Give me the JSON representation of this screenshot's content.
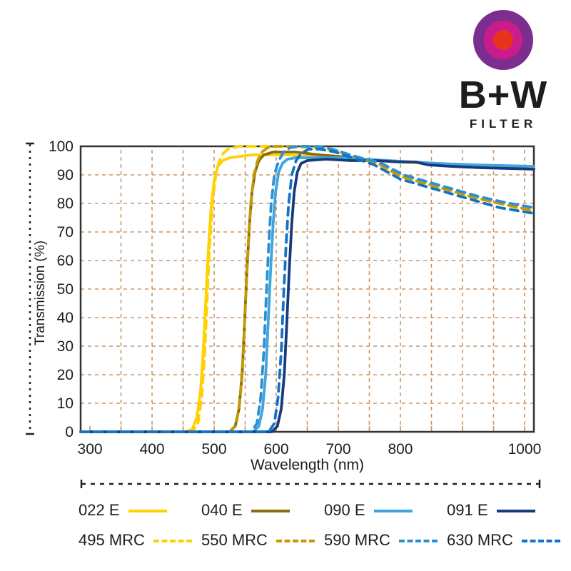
{
  "logo": {
    "brand": "B+W",
    "subtitle": "FILTER",
    "ring_colors": {
      "outer": "#7C2D8E",
      "middle": "#CB1C8C",
      "inner": "#E8331A"
    }
  },
  "chart_data": {
    "type": "line",
    "title": "",
    "xlabel": "Wavelength (nm)",
    "ylabel": "Transmission (%)",
    "x_range": [
      285,
      1015
    ],
    "y_range": [
      0,
      100
    ],
    "x_ticks": [
      300,
      400,
      500,
      600,
      700,
      800,
      1000
    ],
    "x_minor_tick_step": 50,
    "y_ticks": [
      0,
      10,
      20,
      30,
      40,
      50,
      60,
      70,
      80,
      90,
      100
    ],
    "grid": {
      "on": true,
      "color": "#C8966B",
      "x_start": 350,
      "x_step": 50
    },
    "axis_color": "#333333",
    "marker_color": "#222222",
    "legend_position": "bottom",
    "series": [
      {
        "name": "022 E",
        "color": "#FFD100",
        "dashed": false,
        "points": [
          [
            285,
            0
          ],
          [
            455,
            0
          ],
          [
            465,
            1
          ],
          [
            472,
            5
          ],
          [
            478,
            14
          ],
          [
            483,
            30
          ],
          [
            487,
            48
          ],
          [
            491,
            65
          ],
          [
            495,
            78
          ],
          [
            500,
            88
          ],
          [
            506,
            93
          ],
          [
            514,
            95
          ],
          [
            525,
            96
          ],
          [
            560,
            97
          ],
          [
            620,
            97
          ],
          [
            680,
            96
          ],
          [
            720,
            95.5
          ],
          [
            760,
            95
          ],
          [
            800,
            94.5
          ],
          [
            840,
            94
          ],
          [
            880,
            93.5
          ],
          [
            940,
            93
          ],
          [
            1015,
            92.5
          ]
        ]
      },
      {
        "name": "040 E",
        "color": "#8A6B10",
        "dashed": false,
        "points": [
          [
            285,
            0
          ],
          [
            525,
            0
          ],
          [
            534,
            2
          ],
          [
            540,
            8
          ],
          [
            545,
            20
          ],
          [
            549,
            38
          ],
          [
            553,
            57
          ],
          [
            557,
            73
          ],
          [
            561,
            84
          ],
          [
            566,
            91
          ],
          [
            572,
            95
          ],
          [
            580,
            97
          ],
          [
            595,
            98
          ],
          [
            630,
            98
          ],
          [
            670,
            97
          ],
          [
            700,
            96.5
          ],
          [
            740,
            95.5
          ],
          [
            780,
            95
          ],
          [
            820,
            94.5
          ],
          [
            860,
            94
          ],
          [
            920,
            93
          ],
          [
            1015,
            92
          ]
        ]
      },
      {
        "name": "090 E",
        "color": "#3FA5DE",
        "dashed": false,
        "points": [
          [
            285,
            0
          ],
          [
            563,
            0
          ],
          [
            572,
            2
          ],
          [
            578,
            8
          ],
          [
            583,
            20
          ],
          [
            587,
            38
          ],
          [
            591,
            57
          ],
          [
            595,
            73
          ],
          [
            599,
            84
          ],
          [
            604,
            91
          ],
          [
            610,
            94
          ],
          [
            618,
            95.5
          ],
          [
            632,
            96
          ],
          [
            700,
            96
          ],
          [
            740,
            95.5
          ],
          [
            780,
            95
          ],
          [
            820,
            94.5
          ],
          [
            860,
            94
          ],
          [
            920,
            93.5
          ],
          [
            1015,
            93
          ]
        ]
      },
      {
        "name": "091 E",
        "color": "#173A7E",
        "dashed": false,
        "points": [
          [
            285,
            0
          ],
          [
            593,
            0
          ],
          [
            602,
            2
          ],
          [
            608,
            8
          ],
          [
            613,
            20
          ],
          [
            617,
            38
          ],
          [
            621,
            57
          ],
          [
            625,
            73
          ],
          [
            629,
            84
          ],
          [
            634,
            91
          ],
          [
            640,
            94
          ],
          [
            650,
            95
          ],
          [
            680,
            95.5
          ],
          [
            720,
            95
          ],
          [
            760,
            95
          ],
          [
            800,
            94.5
          ],
          [
            825,
            94.5
          ],
          [
            845,
            93.5
          ],
          [
            880,
            93
          ],
          [
            930,
            92.5
          ],
          [
            1015,
            92
          ]
        ]
      },
      {
        "name": "495 MRC",
        "color": "#FFD100",
        "dashed": true,
        "points": [
          [
            285,
            0
          ],
          [
            465,
            0
          ],
          [
            474,
            3
          ],
          [
            480,
            12
          ],
          [
            485,
            28
          ],
          [
            489,
            48
          ],
          [
            493,
            66
          ],
          [
            498,
            82
          ],
          [
            504,
            92
          ],
          [
            512,
            97
          ],
          [
            522,
            99
          ],
          [
            540,
            100
          ],
          [
            620,
            100
          ],
          [
            660,
            99.5
          ],
          [
            690,
            98.5
          ],
          [
            715,
            97
          ],
          [
            740,
            95.5
          ],
          [
            762,
            94
          ],
          [
            800,
            89.5
          ],
          [
            840,
            87
          ],
          [
            880,
            84.5
          ],
          [
            920,
            82
          ],
          [
            960,
            80
          ],
          [
            1015,
            77
          ]
        ]
      },
      {
        "name": "550 MRC",
        "color": "#C39B00",
        "dashed": true,
        "points": [
          [
            285,
            0
          ],
          [
            527,
            0
          ],
          [
            536,
            3
          ],
          [
            542,
            12
          ],
          [
            547,
            28
          ],
          [
            551,
            48
          ],
          [
            555,
            66
          ],
          [
            559,
            80
          ],
          [
            564,
            90
          ],
          [
            570,
            95
          ],
          [
            577,
            98
          ],
          [
            586,
            99.5
          ],
          [
            600,
            100
          ],
          [
            650,
            100
          ],
          [
            680,
            99.5
          ],
          [
            705,
            98
          ],
          [
            725,
            96.5
          ],
          [
            748,
            95
          ],
          [
            765,
            94
          ],
          [
            800,
            89.5
          ],
          [
            840,
            87
          ],
          [
            880,
            84.5
          ],
          [
            920,
            82
          ],
          [
            960,
            80
          ],
          [
            1015,
            77.5
          ]
        ]
      },
      {
        "name": "590 MRC",
        "color": "#2B8FD6",
        "dashed": true,
        "points": [
          [
            285,
            0
          ],
          [
            560,
            0
          ],
          [
            569,
            3
          ],
          [
            575,
            12
          ],
          [
            580,
            28
          ],
          [
            584,
            48
          ],
          [
            588,
            66
          ],
          [
            592,
            80
          ],
          [
            597,
            90
          ],
          [
            604,
            95
          ],
          [
            612,
            98
          ],
          [
            622,
            99.5
          ],
          [
            638,
            100
          ],
          [
            665,
            100
          ],
          [
            690,
            99
          ],
          [
            712,
            97.5
          ],
          [
            735,
            96
          ],
          [
            755,
            95
          ],
          [
            770,
            94
          ],
          [
            805,
            90
          ],
          [
            845,
            87.5
          ],
          [
            885,
            85
          ],
          [
            925,
            82.5
          ],
          [
            965,
            80.5
          ],
          [
            1015,
            78.5
          ]
        ]
      },
      {
        "name": "630 MRC",
        "color": "#1173C8",
        "dashed": true,
        "points": [
          [
            285,
            0
          ],
          [
            588,
            0
          ],
          [
            597,
            3
          ],
          [
            603,
            12
          ],
          [
            608,
            28
          ],
          [
            612,
            48
          ],
          [
            616,
            66
          ],
          [
            620,
            80
          ],
          [
            625,
            90
          ],
          [
            632,
            95
          ],
          [
            640,
            97.5
          ],
          [
            652,
            99
          ],
          [
            670,
            99
          ],
          [
            695,
            98
          ],
          [
            715,
            96.5
          ],
          [
            738,
            95
          ],
          [
            758,
            93.5
          ],
          [
            800,
            88.5
          ],
          [
            840,
            86
          ],
          [
            880,
            83.5
          ],
          [
            920,
            81
          ],
          [
            960,
            78.5
          ],
          [
            1015,
            76.5
          ]
        ]
      }
    ]
  }
}
